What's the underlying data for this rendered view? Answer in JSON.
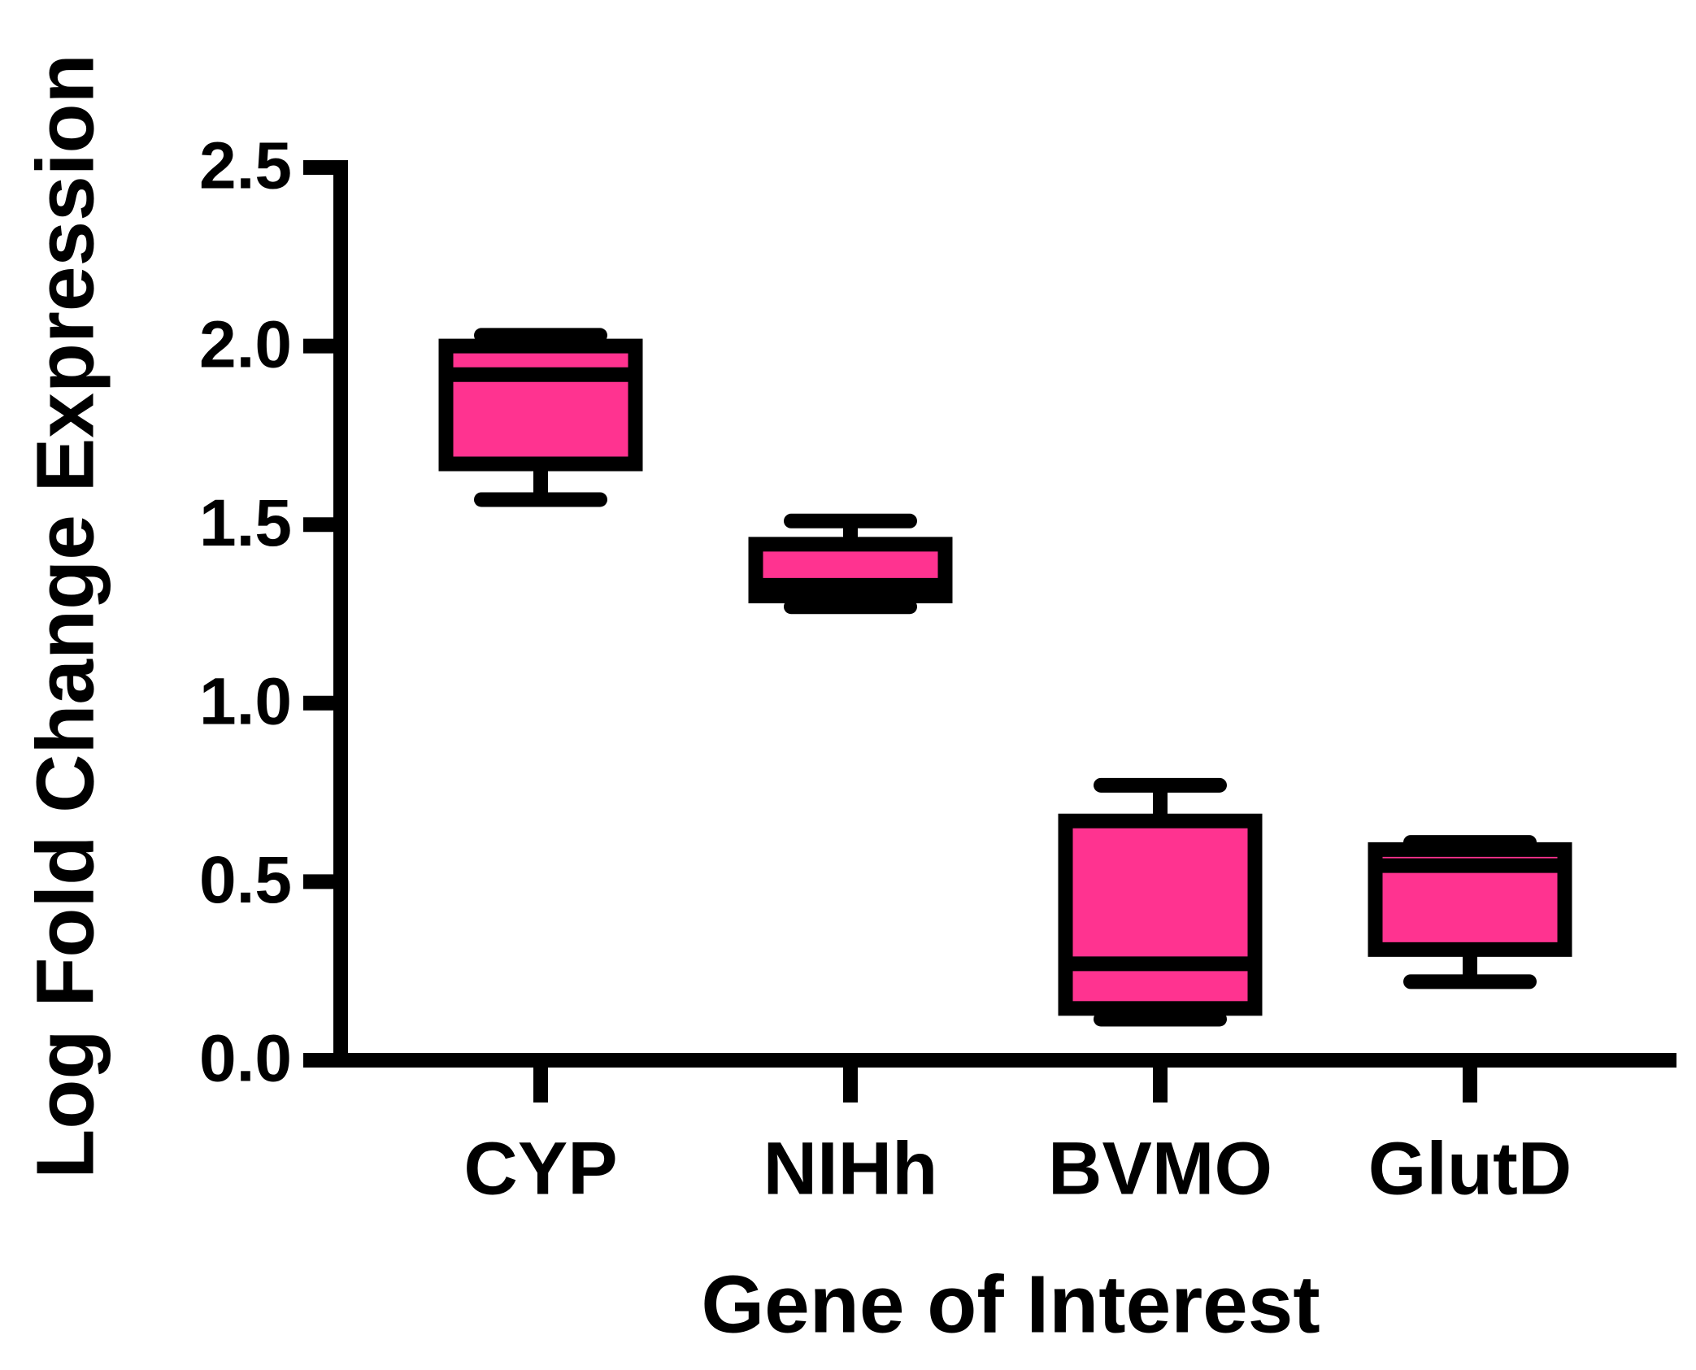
{
  "chart_data": {
    "type": "box",
    "x_label": "Gene of Interest",
    "y_label": "Log Fold Change Expression",
    "categories": [
      "CYP",
      "NIHh",
      "BVMO",
      "GlutD"
    ],
    "series": [
      {
        "color": "#ff3390",
        "min": [
          1.57,
          1.27,
          0.115,
          0.22
        ],
        "q1": [
          1.67,
          1.3,
          0.145,
          0.31
        ],
        "median": [
          1.92,
          1.33,
          0.27,
          0.545
        ],
        "q3": [
          2.0,
          1.445,
          0.67,
          0.59
        ],
        "max": [
          2.03,
          1.51,
          0.77,
          0.61
        ]
      }
    ],
    "ylim": [
      0,
      2.5
    ],
    "yticks": [
      {
        "value": 0,
        "label": "0.0"
      },
      0.5,
      {
        "value": 1,
        "label": "1.0"
      },
      1.5,
      {
        "value": 2,
        "label": "2.0"
      },
      2.5
    ]
  }
}
